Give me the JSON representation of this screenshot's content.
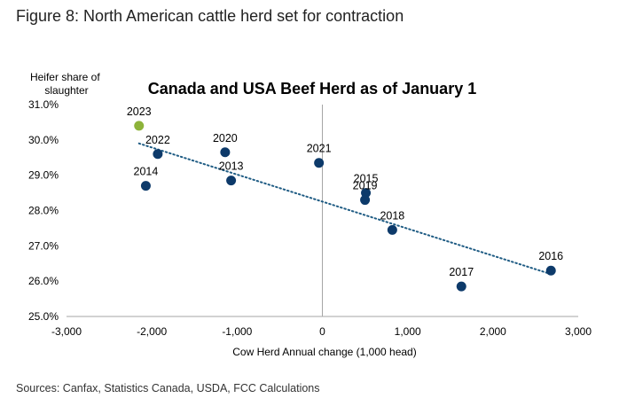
{
  "figure_title": "Figure 8: North American cattle herd set for contraction",
  "source": "Sources: Canfax, Statistics Canada, USDA, FCC Calculations",
  "chart_data": {
    "type": "scatter",
    "title": "Canada and USA Beef Herd as of January 1",
    "xlabel": "Cow Herd Annual change (1,000 head)",
    "ylabel_lines": [
      "Heifer share of",
      "slaughter"
    ],
    "xlim": [
      -3000,
      3000
    ],
    "ylim": [
      25.0,
      31.0
    ],
    "x_ticks": [
      -3000,
      -2000,
      -1000,
      0,
      1000,
      2000,
      3000
    ],
    "x_tick_labels": [
      "-3,000",
      "-2,000",
      "-1,000",
      "0",
      "1,000",
      "2,000",
      "3,000"
    ],
    "y_ticks": [
      25,
      26,
      27,
      28,
      29,
      30,
      31
    ],
    "y_tick_labels": [
      "25.0%",
      "26.0%",
      "27.0%",
      "28.0%",
      "29.0%",
      "30.0%",
      "31.0%"
    ],
    "points": [
      {
        "label": "2023",
        "x": -2150,
        "y": 30.4,
        "color": "#8db33a"
      },
      {
        "label": "2022",
        "x": -1930,
        "y": 29.6,
        "color": "#0d3a6a"
      },
      {
        "label": "2014",
        "x": -2070,
        "y": 28.7,
        "color": "#0d3a6a"
      },
      {
        "label": "2020",
        "x": -1140,
        "y": 29.65,
        "color": "#0d3a6a"
      },
      {
        "label": "2013",
        "x": -1070,
        "y": 28.85,
        "color": "#0d3a6a"
      },
      {
        "label": "2021",
        "x": -40,
        "y": 29.35,
        "color": "#0d3a6a"
      },
      {
        "label": "2015",
        "x": 510,
        "y": 28.5,
        "color": "#0d3a6a"
      },
      {
        "label": "2019",
        "x": 500,
        "y": 28.3,
        "color": "#0d3a6a"
      },
      {
        "label": "2018",
        "x": 820,
        "y": 27.45,
        "color": "#0d3a6a"
      },
      {
        "label": "2017",
        "x": 1630,
        "y": 25.85,
        "color": "#0d3a6a"
      },
      {
        "label": "2016",
        "x": 2680,
        "y": 26.3,
        "color": "#0d3a6a"
      }
    ],
    "trendline": {
      "x": [
        -2150,
        2680
      ],
      "y": [
        29.9,
        26.2
      ],
      "color": "#1f5c84",
      "style": "dotted"
    },
    "grid": false
  }
}
